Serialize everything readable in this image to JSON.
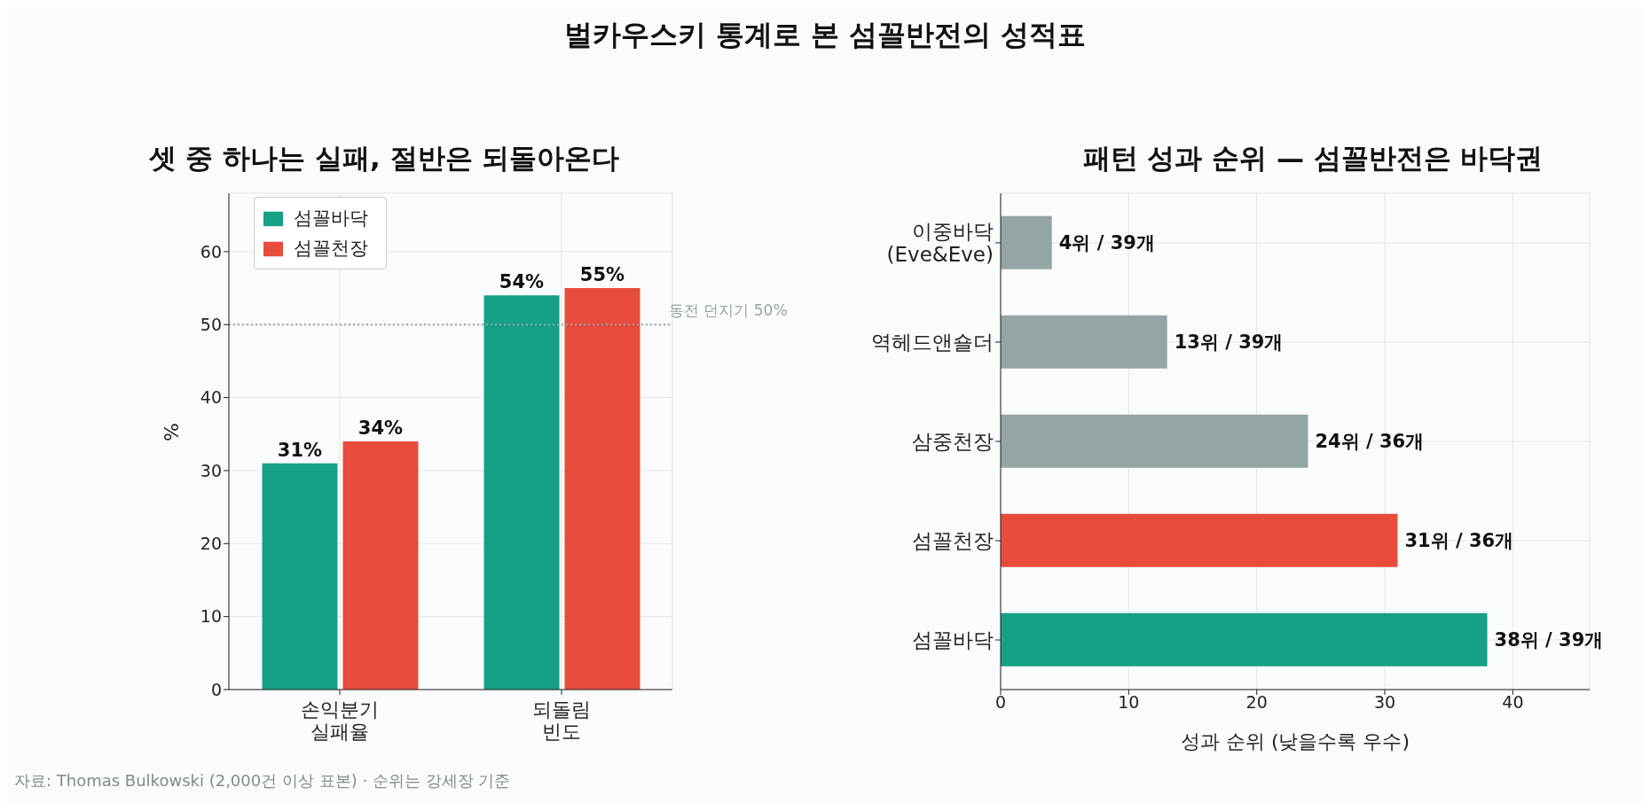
{
  "chart_data": [
    {
      "type": "bar",
      "title": "셋 중 하나는 실패, 절반은 되돌아온다",
      "ylabel": "%",
      "categories": [
        "손익분기\n실패율",
        "되돌림\n빈도"
      ],
      "series": [
        {
          "name": "섬꼴바닥",
          "color": "#16a085",
          "values": [
            31,
            54
          ],
          "value_labels": [
            "31%",
            "54%"
          ]
        },
        {
          "name": "섬꼴천장",
          "color": "#e74c3c",
          "values": [
            34,
            55
          ],
          "value_labels": [
            "34%",
            "55%"
          ]
        }
      ],
      "ylim": [
        0,
        68
      ],
      "yticks": [
        0,
        10,
        20,
        30,
        40,
        50,
        60
      ],
      "grid": true,
      "legend": "top left",
      "ref_lines": [
        {
          "axis": "y",
          "value": 50,
          "label": "동전 던지기 50%",
          "color": "#95a5a6",
          "line_style": "dotted"
        }
      ],
      "annotations": [
        "벌카우스키 통계로 본 섬꼴반전의 성적표",
        "자료: Thomas Bulkowski (2,000건 이상 표본) · 순위는 강세장 기준"
      ]
    },
    {
      "type": "bar",
      "orientation": "horizontal",
      "title": "패턴 성과 순위 — 섬꼴반전은 바닥권",
      "xlabel": "성과 순위 (낮을수록 우수)",
      "categories": [
        "이중바닥\n(Eve&Eve)",
        "역헤드앤숄더",
        "삼중천장",
        "섬꼴천장",
        "섬꼴바닥"
      ],
      "values": [
        4,
        13,
        24,
        31,
        38
      ],
      "colors": [
        "#95a5a6",
        "#95a5a6",
        "#95a5a6",
        "#e74c3c",
        "#16a085"
      ],
      "value_labels": [
        "4위 / 39개",
        "13위 / 39개",
        "24위 / 36개",
        "31위 / 36개",
        "38위 / 39개"
      ],
      "xlim": [
        0,
        46
      ],
      "xticks": [
        0,
        10,
        20,
        30,
        40
      ],
      "grid": true
    }
  ]
}
